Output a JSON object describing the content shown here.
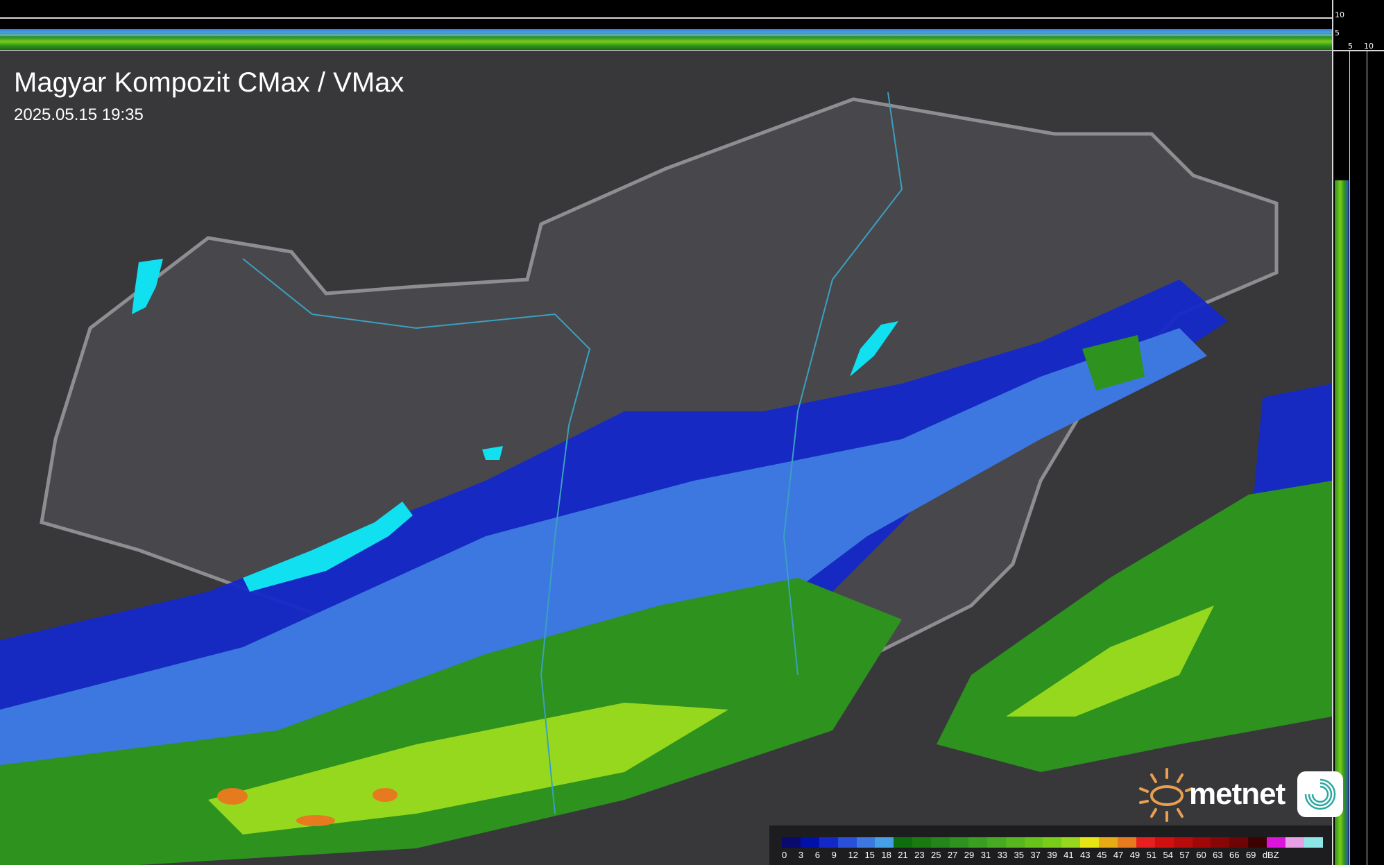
{
  "header": {
    "title": "Magyar Kompozit CMax / VMax",
    "timestamp": "2025.05.15 19:35"
  },
  "profile_axes": {
    "top_ticks": [
      "10",
      "5"
    ],
    "side_ticks": [
      "5",
      "10"
    ]
  },
  "legend": {
    "labels": [
      "0",
      "3",
      "6",
      "9",
      "12",
      "15",
      "18",
      "21",
      "23",
      "25",
      "27",
      "29",
      "31",
      "33",
      "35",
      "37",
      "39",
      "41",
      "43",
      "45",
      "47",
      "49",
      "51",
      "54",
      "57",
      "60",
      "63",
      "66",
      "69"
    ],
    "unit": "dBZ",
    "colors": [
      "#0a0a6e",
      "#0010a8",
      "#1428c8",
      "#2850d8",
      "#3c78e0",
      "#46a0e6",
      "#0e6e0e",
      "#1a7a10",
      "#24861a",
      "#2e921e",
      "#3a9e20",
      "#48aa22",
      "#58b61e",
      "#68c21c",
      "#7acc1a",
      "#96d81e",
      "#e6e614",
      "#e6aa14",
      "#e67a1e",
      "#e62020",
      "#d01010",
      "#b80c0c",
      "#a00808",
      "#880606",
      "#6e0404",
      "#3c0202",
      "#dc14dc",
      "#e6a0e6",
      "#8ce6e6"
    ]
  },
  "branding": {
    "logo_text": "metnet",
    "sun_color": "#e8a050",
    "badge_color": "#2aa8a0"
  },
  "map_colors": {
    "terrain": "#3a3a3c",
    "country": "#4a4a4e",
    "border": "#9a9a9e",
    "lakes": "#10e0f0",
    "rivers": "#3aa0c0"
  }
}
